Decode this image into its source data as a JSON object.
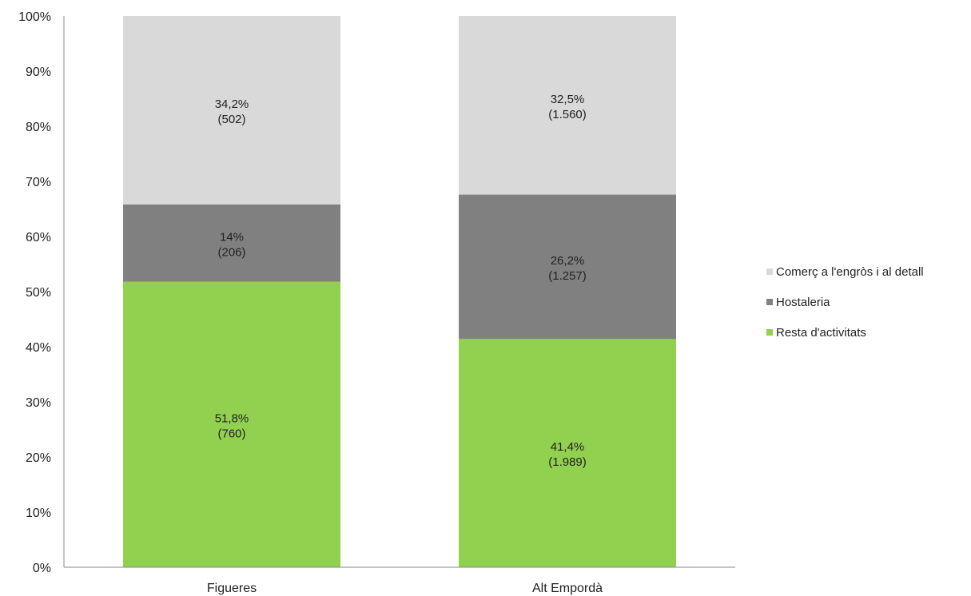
{
  "chart_data": {
    "type": "bar",
    "stacked": true,
    "categories": [
      "Figueres",
      "Alt Empordà"
    ],
    "ylim": [
      0,
      100
    ],
    "yticks": [
      "0%",
      "10%",
      "20%",
      "30%",
      "40%",
      "50%",
      "60%",
      "70%",
      "80%",
      "90%",
      "100%"
    ],
    "legend_position": "right",
    "grid": false,
    "series": [
      {
        "name": "Resta d'activitats",
        "color": "#92d050",
        "values": [
          51.8,
          41.4
        ],
        "labels": [
          {
            "pct": "51,8%",
            "count": "(760)"
          },
          {
            "pct": "41,4%",
            "count": "(1.989)"
          }
        ]
      },
      {
        "name": "Hostaleria",
        "color": "#808080",
        "values": [
          14,
          26.2
        ],
        "labels": [
          {
            "pct": "14%",
            "count": "(206)"
          },
          {
            "pct": "26,2%",
            "count": "(1.257)"
          }
        ]
      },
      {
        "name": "Comerç a l'engròs i al detall",
        "color": "#d9d9d9",
        "values": [
          34.2,
          32.5
        ],
        "labels": [
          {
            "pct": "34,2%",
            "count": "(502)"
          },
          {
            "pct": "32,5%",
            "count": "(1.560)"
          }
        ]
      }
    ],
    "legend_order": [
      "Comerç a l'engròs i al detall",
      "Hostaleria",
      "Resta d'activitats"
    ]
  }
}
